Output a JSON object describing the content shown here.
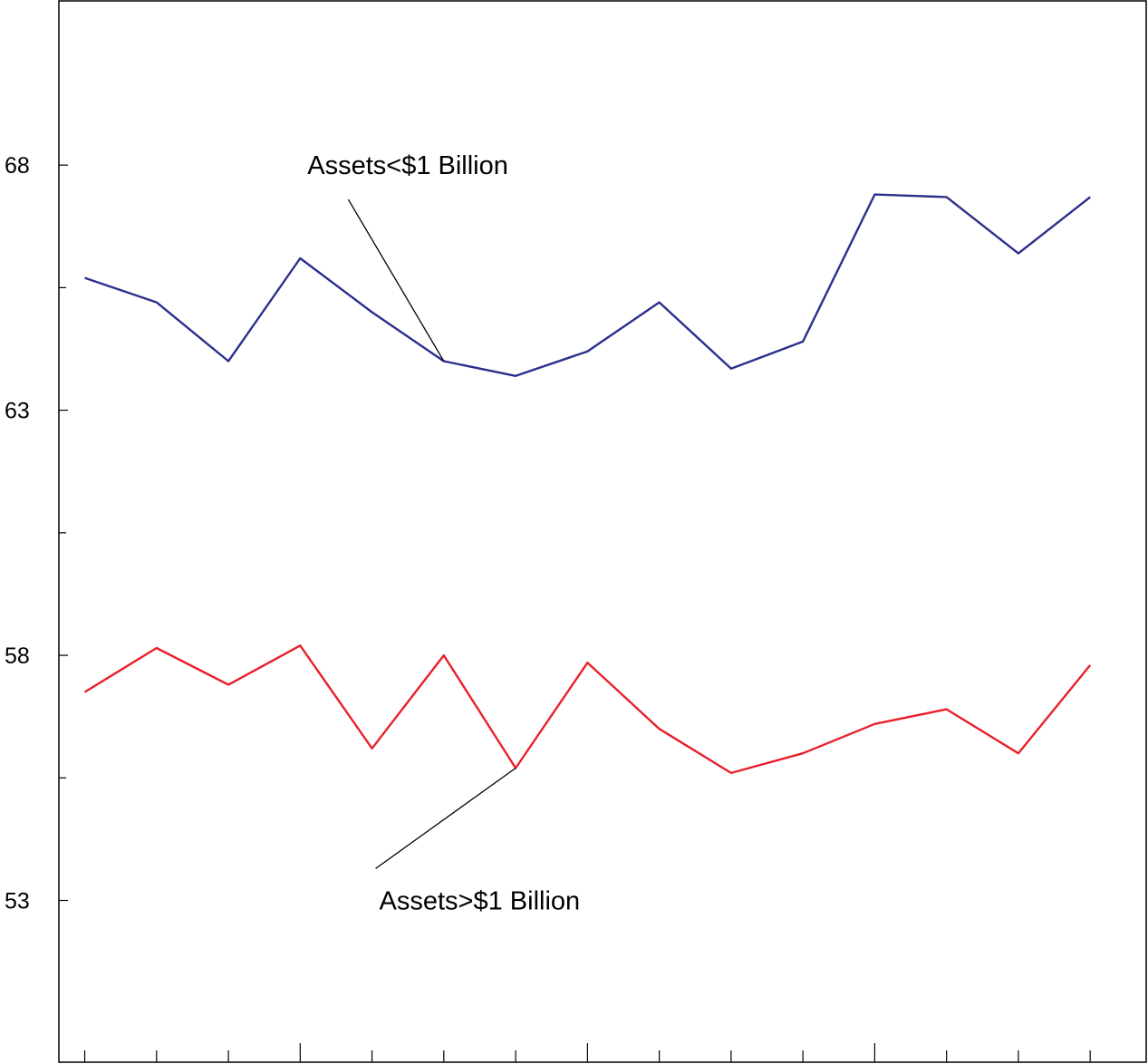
{
  "chart_data": {
    "type": "line",
    "title": "",
    "xlabel": "",
    "ylabel": "",
    "x": [
      1,
      2,
      3,
      4,
      5,
      6,
      7,
      8,
      9,
      10,
      11,
      12,
      13,
      14,
      15
    ],
    "xlim": [
      0.64,
      15.78
    ],
    "ylim": [
      49.7,
      71.35
    ],
    "y_ticks_labeled": [
      53,
      58,
      63,
      68
    ],
    "y_ticks_minor": [
      55.5,
      60.5,
      65.5
    ],
    "x_ticks_major": [
      4,
      8,
      12
    ],
    "grid": false,
    "legend": "none",
    "series": [
      {
        "color": "#2b2f8c",
        "values": [
          65.7,
          65.2,
          64.0,
          66.1,
          65.0,
          64.0,
          63.7,
          64.2,
          65.2,
          63.85,
          64.4,
          67.4,
          67.35,
          66.2,
          67.35
        ]
      },
      {
        "color": "#e8202a",
        "values": [
          57.25,
          58.15,
          57.4,
          58.2,
          56.1,
          58.0,
          55.7,
          57.85,
          56.5,
          55.6,
          56.0,
          56.6,
          56.9,
          56.0,
          57.8
        ]
      }
    ],
    "annotations": [
      {
        "text": "Assets<$1 Billion",
        "series": 0,
        "point_index": 5,
        "text_x": 4.1,
        "text_y": 68.0,
        "line_from_x": 4.67,
        "line_from_y": 67.3
      },
      {
        "text": "Assets>$1 Billion",
        "series": 1,
        "point_index": 6,
        "text_x": 5.1,
        "text_y": 53.0,
        "line_from_x": 5.05,
        "line_from_y": 53.65
      }
    ]
  }
}
